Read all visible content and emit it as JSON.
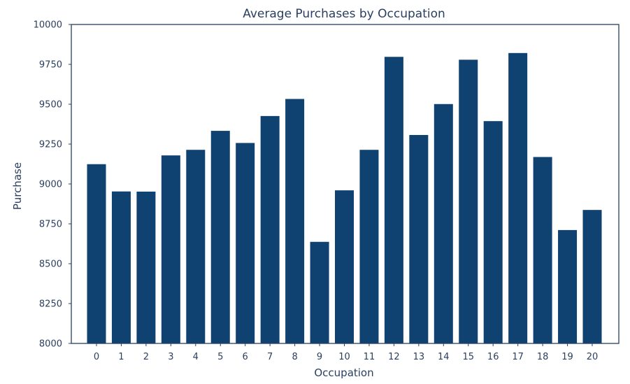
{
  "chart_data": {
    "type": "bar",
    "title": "Average Purchases by Occupation",
    "xlabel": "Occupation",
    "ylabel": "Purchase",
    "categories": [
      "0",
      "1",
      "2",
      "3",
      "4",
      "5",
      "6",
      "7",
      "8",
      "9",
      "10",
      "11",
      "12",
      "13",
      "14",
      "15",
      "16",
      "17",
      "18",
      "19",
      "20"
    ],
    "values": [
      9124,
      8953,
      8952,
      9179,
      9214,
      9333,
      9257,
      9426,
      9533,
      8637,
      8960,
      9214,
      9797,
      9307,
      9501,
      9779,
      9394,
      9821,
      9169,
      8711,
      8837
    ],
    "ylim": [
      8000,
      10000
    ],
    "yticks": [
      "8000",
      "8250",
      "8500",
      "8750",
      "9000",
      "9250",
      "9500",
      "9750",
      "10000"
    ],
    "grid": false,
    "legend": "none",
    "colors": {
      "bar": "#0f4171",
      "frame": "#2a3f5f",
      "text": "#2a3f5f"
    }
  }
}
